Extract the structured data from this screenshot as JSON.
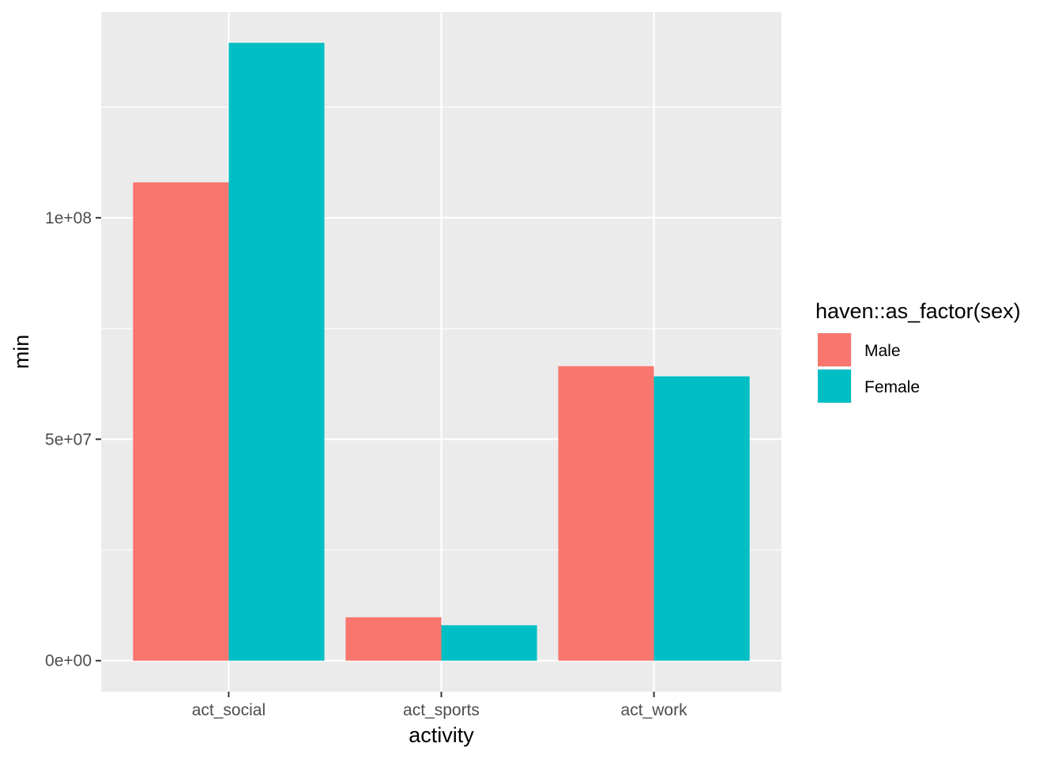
{
  "chart_data": {
    "type": "bar",
    "categories": [
      "act_social",
      "act_sports",
      "act_work"
    ],
    "series": [
      {
        "name": "Male",
        "values": [
          108000000,
          9800000,
          66500000
        ],
        "color": "#F8766D"
      },
      {
        "name": "Female",
        "values": [
          139500000,
          8000000,
          64200000
        ],
        "color": "#00BFC4"
      }
    ],
    "xlabel": "activity",
    "ylabel": "min",
    "ylim": [
      -7000000,
      146500000
    ],
    "yticks": [
      {
        "value": 0,
        "label": "0e+00"
      },
      {
        "value": 50000000,
        "label": "5e+07"
      },
      {
        "value": 100000000,
        "label": "1e+08"
      }
    ],
    "yminor": [
      25000000,
      75000000,
      125000000
    ],
    "legend": {
      "title": "haven::as_factor(sex)",
      "placement": "right"
    },
    "panel_background": "#EBEBEB",
    "grid": true
  }
}
